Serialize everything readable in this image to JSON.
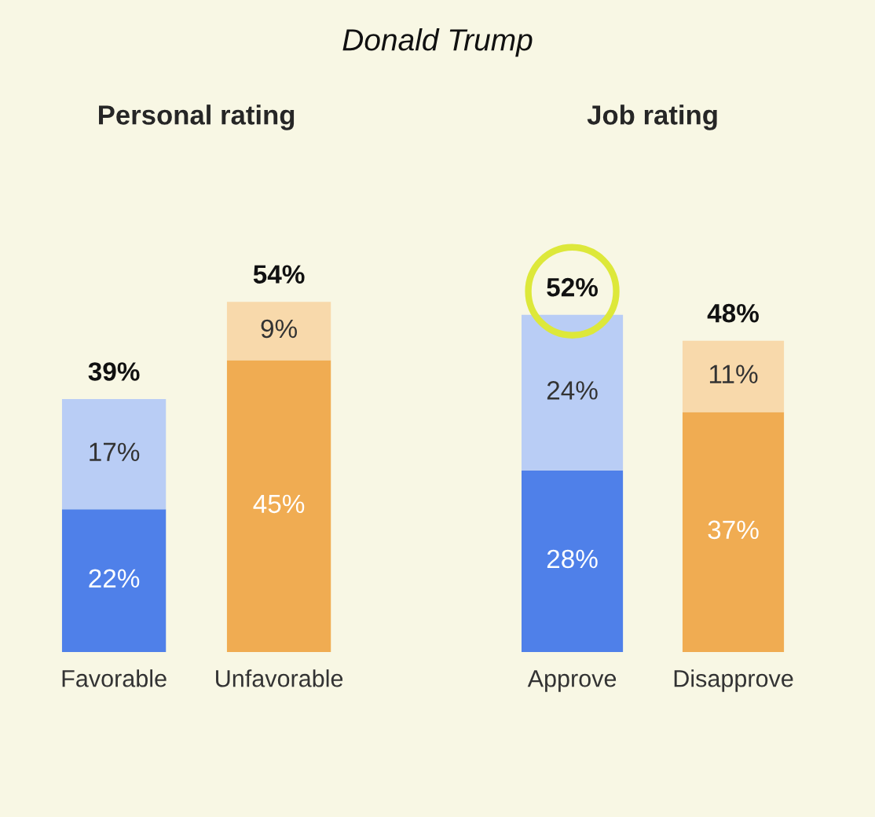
{
  "chart_data": [
    {
      "type": "bar",
      "stacked": true,
      "title": "Personal rating",
      "annotations": [
        "Donald Trump"
      ],
      "categories": [
        "Favorable",
        "Unfavorable"
      ],
      "series": [
        {
          "values": [
            22,
            45
          ],
          "colors": [
            "#4f80e9",
            "#f0ac52"
          ],
          "value_labels": [
            "22%",
            "45%"
          ]
        },
        {
          "values": [
            17,
            9
          ],
          "colors": [
            "#b9cdf5",
            "#f8d9ab"
          ],
          "value_labels": [
            "17%",
            "9%"
          ]
        }
      ],
      "totals": [
        "39%",
        "54%"
      ],
      "tick_labels": "x",
      "grid": false
    },
    {
      "type": "bar",
      "stacked": true,
      "title": "Job rating",
      "categories": [
        "Approve",
        "Disapprove"
      ],
      "series": [
        {
          "values": [
            28,
            37
          ],
          "colors": [
            "#4f80e9",
            "#f0ac52"
          ],
          "value_labels": [
            "28%",
            "37%"
          ]
        },
        {
          "values": [
            24,
            11
          ],
          "colors": [
            "#b9cdf5",
            "#f8d9ab"
          ],
          "value_labels": [
            "24%",
            "11%"
          ]
        }
      ],
      "totals": [
        "52%",
        "48%"
      ],
      "tick_labels": "x",
      "grid": false
    }
  ]
}
